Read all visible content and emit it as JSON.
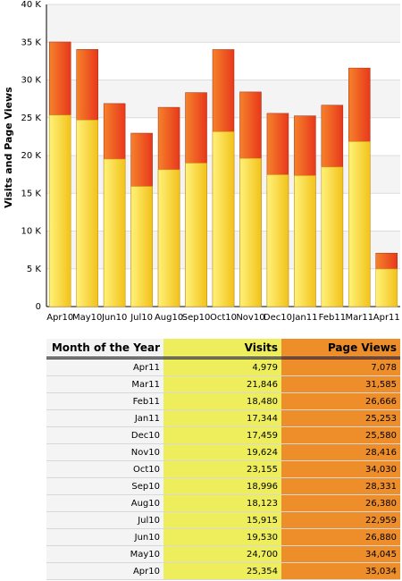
{
  "chart_data": {
    "type": "bar",
    "ylabel": "Visits and Page Views",
    "categories": [
      "Apr10",
      "May10",
      "Jun10",
      "Jul10",
      "Aug10",
      "Sep10",
      "Oct10",
      "Nov10",
      "Dec10",
      "Jan11",
      "Feb11",
      "Mar11",
      "Apr11"
    ],
    "series": [
      {
        "name": "Visits",
        "color": "#f2c21a",
        "values": [
          25354,
          24700,
          19530,
          15915,
          18123,
          18996,
          23155,
          19624,
          17459,
          17344,
          18480,
          21846,
          4979
        ],
        "value_labels": [
          "25,354",
          "24,700",
          "19,530",
          "15,915",
          "18,123",
          "18,996",
          "23,155",
          "19,624",
          "17,459",
          "17,344",
          "18,480",
          "21,846",
          "4,979"
        ]
      },
      {
        "name": "Page Views",
        "color": "#e8381c",
        "values": [
          35034,
          34045,
          26880,
          22959,
          26380,
          28331,
          34030,
          28416,
          25580,
          25253,
          26666,
          31585,
          7078
        ],
        "value_labels": [
          "35,034",
          "34,045",
          "26,880",
          "22,959",
          "26,380",
          "28,331",
          "34,030",
          "28,416",
          "25,580",
          "25,253",
          "26,666",
          "31,585",
          "7,078"
        ]
      }
    ],
    "ylim": [
      0,
      40000
    ],
    "yticks": [
      0,
      {
        "value": 5000,
        "label": "5 K"
      },
      {
        "value": 10000,
        "label": "10 K"
      },
      {
        "value": 15000,
        "label": "15 K"
      },
      {
        "value": 20000,
        "label": "20 K"
      },
      {
        "value": 25000,
        "label": "25 K"
      },
      {
        "value": 30000,
        "label": "30 K"
      },
      {
        "value": 35000,
        "label": "35 K"
      },
      {
        "value": 40000,
        "label": "40 K"
      }
    ],
    "grid": true
  },
  "table": {
    "header": "Month of the Year"
  }
}
